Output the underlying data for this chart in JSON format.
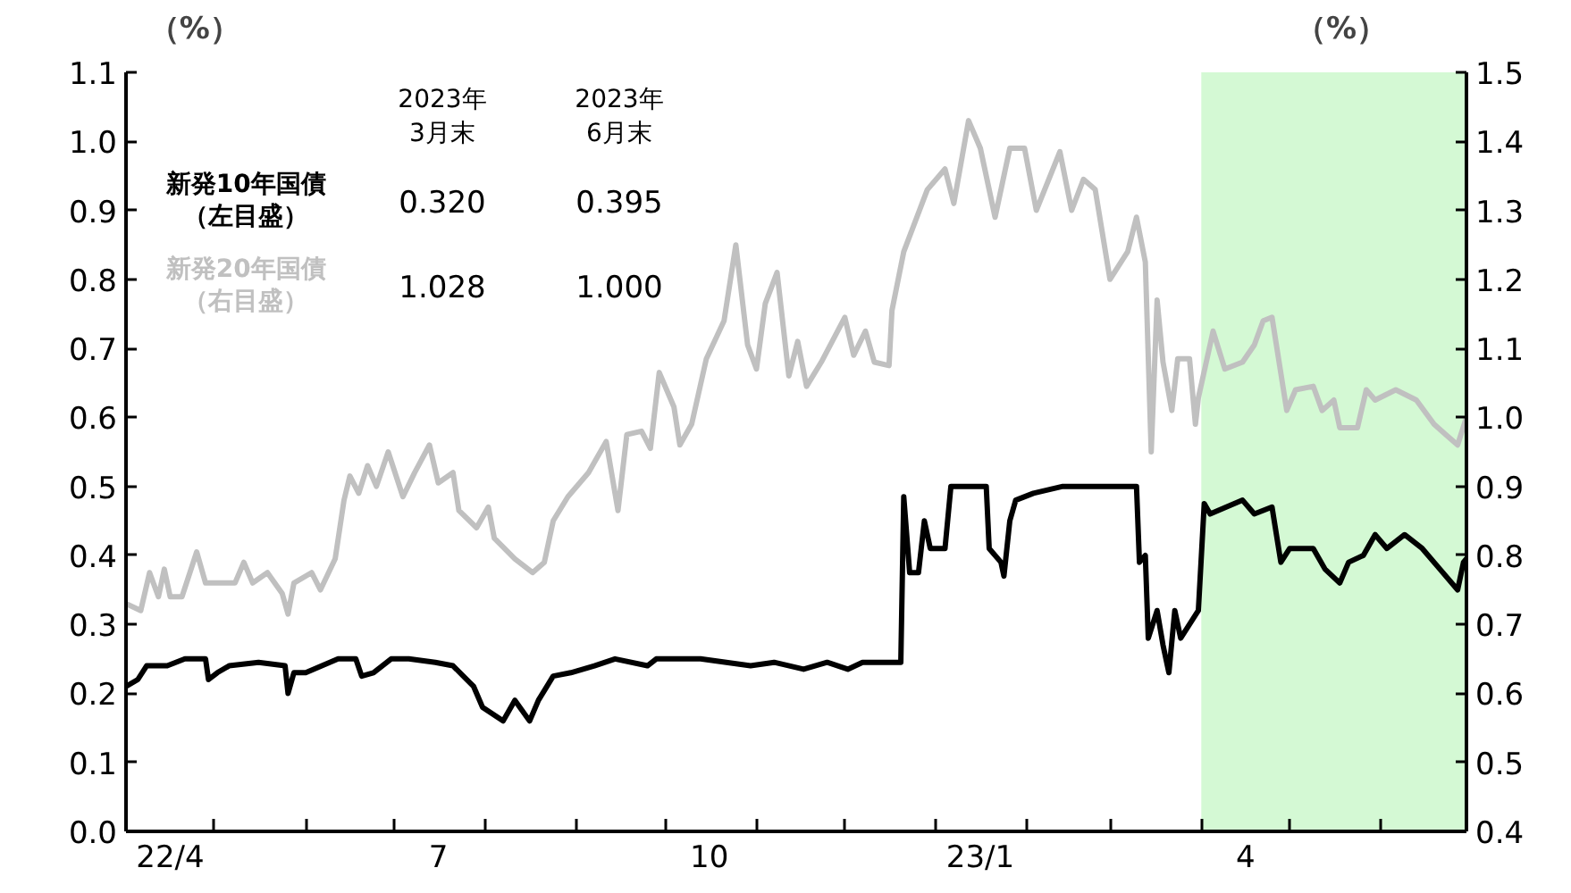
{
  "chart_data": {
    "type": "line",
    "ylabel": "（%）",
    "y2label": "（%）",
    "xlim": [
      "2022-04-01",
      "2023-06-30"
    ],
    "xticks": [
      {
        "value": "2022-04-01",
        "label": null
      },
      {
        "value": "2022-05-01",
        "label": null
      },
      {
        "value": "2022-06-01",
        "label": null
      },
      {
        "value": "2022-07-01",
        "label": null
      },
      {
        "value": "2022-08-01",
        "label": null
      },
      {
        "value": "2022-09-01",
        "label": null
      },
      {
        "value": "2022-10-01",
        "label": null
      },
      {
        "value": "2022-11-01",
        "label": null
      },
      {
        "value": "2022-12-01",
        "label": null
      },
      {
        "value": "2023-01-01",
        "label": null
      },
      {
        "value": "2023-02-01",
        "label": null
      },
      {
        "value": "2023-03-01",
        "label": null
      },
      {
        "value": "2023-04-01",
        "label": null
      },
      {
        "value": "2023-05-01",
        "label": null
      },
      {
        "value": "2023-06-01",
        "label": null
      },
      {
        "value": "2022-04-16",
        "label": "22/4"
      },
      {
        "value": "2022-07-16",
        "label": "7"
      },
      {
        "value": "2022-10-16",
        "label": "10"
      },
      {
        "value": "2023-01-16",
        "label": "23/1"
      },
      {
        "value": "2023-04-16",
        "label": "4"
      }
    ],
    "ylim": [
      0,
      1.1
    ],
    "yticks": [
      {
        "value": 0,
        "label": "0.0"
      },
      {
        "value": 0.1,
        "label": "0.1"
      },
      {
        "value": 0.2,
        "label": "0.2"
      },
      {
        "value": 0.3,
        "label": "0.3"
      },
      {
        "value": 0.4,
        "label": "0.4"
      },
      {
        "value": 0.5,
        "label": "0.5"
      },
      {
        "value": 0.6,
        "label": "0.6"
      },
      {
        "value": 0.7,
        "label": "0.7"
      },
      {
        "value": 0.8,
        "label": "0.8"
      },
      {
        "value": 0.9,
        "label": "0.9"
      },
      {
        "value": 1.0,
        "label": "1.0"
      },
      {
        "value": 1.1,
        "label": "1.1"
      }
    ],
    "y2lim": [
      0.4,
      1.5
    ],
    "y2ticks": [
      {
        "value": 0.4,
        "label": "0.4"
      },
      {
        "value": 0.5,
        "label": "0.5"
      },
      {
        "value": 0.6,
        "label": "0.6"
      },
      {
        "value": 0.7,
        "label": "0.7"
      },
      {
        "value": 0.8,
        "label": "0.8"
      },
      {
        "value": 0.9,
        "label": "0.9"
      },
      {
        "value": 1.0,
        "label": "1.0"
      },
      {
        "value": 1.1,
        "label": "1.1"
      },
      {
        "value": 1.2,
        "label": "1.2"
      },
      {
        "value": 1.3,
        "label": "1.3"
      },
      {
        "value": 1.4,
        "label": "1.4"
      },
      {
        "value": 1.5,
        "label": "1.5"
      }
    ],
    "bands": [
      {
        "axis": "x",
        "from": "2023-04-01",
        "to": "2023-06-30",
        "color": "#d4f9d4"
      }
    ],
    "annotations": [
      "2023年\n3月末",
      "2023年\n6月末",
      "0.320",
      "0.395",
      "1.028",
      "1.000"
    ],
    "series": [
      {
        "name": "新発10年国債（左目盛）",
        "color": "#000000",
        "x": [
          "2022-04-01",
          "2022-04-05",
          "2022-04-08",
          "2022-04-15",
          "2022-04-21",
          "2022-04-28",
          "2022-04-29",
          "2022-05-02",
          "2022-05-06",
          "2022-05-16",
          "2022-05-25",
          "2022-05-26",
          "2022-05-28",
          "2022-06-01",
          "2022-06-12",
          "2022-06-18",
          "2022-06-20",
          "2022-06-24",
          "2022-06-30",
          "2022-07-06",
          "2022-07-15",
          "2022-07-21",
          "2022-07-28",
          "2022-07-31",
          "2022-08-07",
          "2022-08-11",
          "2022-08-16",
          "2022-08-19",
          "2022-08-24",
          "2022-08-30",
          "2022-09-07",
          "2022-09-14",
          "2022-09-25",
          "2022-09-28",
          "2022-10-13",
          "2022-10-30",
          "2022-11-07",
          "2022-11-17",
          "2022-11-25",
          "2022-12-02",
          "2022-12-07",
          "2022-12-20",
          "2022-12-21",
          "2022-12-23",
          "2022-12-26",
          "2022-12-28",
          "2022-12-30",
          "2023-01-04",
          "2023-01-06",
          "2023-01-18",
          "2023-01-19",
          "2023-01-23",
          "2023-01-24",
          "2023-01-26",
          "2023-01-28",
          "2023-02-03",
          "2023-02-13",
          "2023-03-10",
          "2023-03-11",
          "2023-03-13",
          "2023-03-14",
          "2023-03-17",
          "2023-03-19",
          "2023-03-21",
          "2023-03-23",
          "2023-03-25",
          "2023-03-28",
          "2023-03-31",
          "2023-04-02",
          "2023-04-04",
          "2023-04-15",
          "2023-04-19",
          "2023-04-25",
          "2023-04-28",
          "2023-05-01",
          "2023-05-09",
          "2023-05-13",
          "2023-05-18",
          "2023-05-21",
          "2023-05-26",
          "2023-05-30",
          "2023-06-03",
          "2023-06-09",
          "2023-06-15",
          "2023-06-21",
          "2023-06-27",
          "2023-06-29",
          "2023-06-30"
        ],
        "values": [
          0.21,
          0.22,
          0.24,
          0.24,
          0.25,
          0.25,
          0.22,
          0.23,
          0.24,
          0.245,
          0.24,
          0.2,
          0.23,
          0.23,
          0.25,
          0.25,
          0.225,
          0.23,
          0.25,
          0.25,
          0.245,
          0.24,
          0.21,
          0.18,
          0.16,
          0.19,
          0.16,
          0.19,
          0.225,
          0.23,
          0.24,
          0.25,
          0.24,
          0.25,
          0.25,
          0.24,
          0.245,
          0.235,
          0.245,
          0.235,
          0.245,
          0.245,
          0.485,
          0.375,
          0.375,
          0.45,
          0.41,
          0.41,
          0.5,
          0.5,
          0.41,
          0.39,
          0.37,
          0.45,
          0.48,
          0.49,
          0.5,
          0.5,
          0.39,
          0.4,
          0.28,
          0.32,
          0.27,
          0.23,
          0.32,
          0.28,
          0.3,
          0.32,
          0.475,
          0.46,
          0.48,
          0.46,
          0.47,
          0.39,
          0.41,
          0.41,
          0.38,
          0.36,
          0.39,
          0.4,
          0.43,
          0.41,
          0.43,
          0.41,
          0.38,
          0.35,
          0.39,
          0.395
        ]
      },
      {
        "name": "新発20年国債（右目盛）",
        "color": "#c0c0c0",
        "axis": "y2",
        "x": [
          "2022-04-01",
          "2022-04-06",
          "2022-04-09",
          "2022-04-12",
          "2022-04-14",
          "2022-04-16",
          "2022-04-20",
          "2022-04-25",
          "2022-04-28",
          "2022-05-08",
          "2022-05-11",
          "2022-05-14",
          "2022-05-19",
          "2022-05-24",
          "2022-05-26",
          "2022-05-28",
          "2022-06-03",
          "2022-06-06",
          "2022-06-11",
          "2022-06-14",
          "2022-06-16",
          "2022-06-19",
          "2022-06-22",
          "2022-06-25",
          "2022-06-29",
          "2022-07-04",
          "2022-07-08",
          "2022-07-13",
          "2022-07-16",
          "2022-07-21",
          "2022-07-23",
          "2022-07-29",
          "2022-08-02",
          "2022-08-04",
          "2022-08-11",
          "2022-08-17",
          "2022-08-21",
          "2022-08-24",
          "2022-08-29",
          "2022-09-05",
          "2022-09-11",
          "2022-09-15",
          "2022-09-18",
          "2022-09-23",
          "2022-09-26",
          "2022-09-29",
          "2022-10-04",
          "2022-10-06",
          "2022-10-10",
          "2022-10-15",
          "2022-10-21",
          "2022-10-25",
          "2022-10-29",
          "2022-11-01",
          "2022-11-04",
          "2022-11-08",
          "2022-11-12",
          "2022-11-15",
          "2022-11-18",
          "2022-11-23",
          "2022-12-01",
          "2022-12-04",
          "2022-12-08",
          "2022-12-11",
          "2022-12-16",
          "2022-12-17",
          "2022-12-21",
          "2022-12-29",
          "2023-01-04",
          "2023-01-07",
          "2023-01-12",
          "2023-01-16",
          "2023-01-21",
          "2023-01-26",
          "2023-01-31",
          "2023-02-04",
          "2023-02-12",
          "2023-02-16",
          "2023-02-20",
          "2023-02-24",
          "2023-03-01",
          "2023-03-07",
          "2023-03-10",
          "2023-03-13",
          "2023-03-15",
          "2023-03-17",
          "2023-03-19",
          "2023-03-22",
          "2023-03-24",
          "2023-03-28",
          "2023-03-30",
          "2023-03-31",
          "2023-04-05",
          "2023-04-09",
          "2023-04-15",
          "2023-04-19",
          "2023-04-22",
          "2023-04-25",
          "2023-04-30",
          "2023-05-03",
          "2023-05-09",
          "2023-05-12",
          "2023-05-16",
          "2023-05-18",
          "2023-05-24",
          "2023-05-27",
          "2023-05-30",
          "2023-06-06",
          "2023-06-13",
          "2023-06-19",
          "2023-06-23",
          "2023-06-27",
          "2023-06-30"
        ],
        "values": [
          0.73,
          0.72,
          0.775,
          0.74,
          0.78,
          0.74,
          0.74,
          0.805,
          0.76,
          0.76,
          0.79,
          0.76,
          0.775,
          0.745,
          0.715,
          0.76,
          0.775,
          0.75,
          0.795,
          0.88,
          0.915,
          0.89,
          0.93,
          0.9,
          0.95,
          0.885,
          0.92,
          0.96,
          0.905,
          0.92,
          0.865,
          0.84,
          0.87,
          0.825,
          0.795,
          0.775,
          0.79,
          0.85,
          0.885,
          0.92,
          0.965,
          0.865,
          0.975,
          0.98,
          0.955,
          1.065,
          1.015,
          0.96,
          0.99,
          1.085,
          1.14,
          1.25,
          1.105,
          1.07,
          1.165,
          1.21,
          1.06,
          1.11,
          1.045,
          1.08,
          1.145,
          1.09,
          1.125,
          1.08,
          1.075,
          1.155,
          1.24,
          1.33,
          1.36,
          1.31,
          1.43,
          1.39,
          1.29,
          1.39,
          1.39,
          1.3,
          1.385,
          1.3,
          1.345,
          1.33,
          1.2,
          1.24,
          1.29,
          1.225,
          0.95,
          1.17,
          1.08,
          1.01,
          1.085,
          1.085,
          0.99,
          1.028,
          1.125,
          1.07,
          1.08,
          1.105,
          1.14,
          1.145,
          1.01,
          1.04,
          1.045,
          1.01,
          1.025,
          0.985,
          0.985,
          1.04,
          1.025,
          1.04,
          1.025,
          0.99,
          0.975,
          0.96,
          1.0
        ]
      }
    ]
  }
}
